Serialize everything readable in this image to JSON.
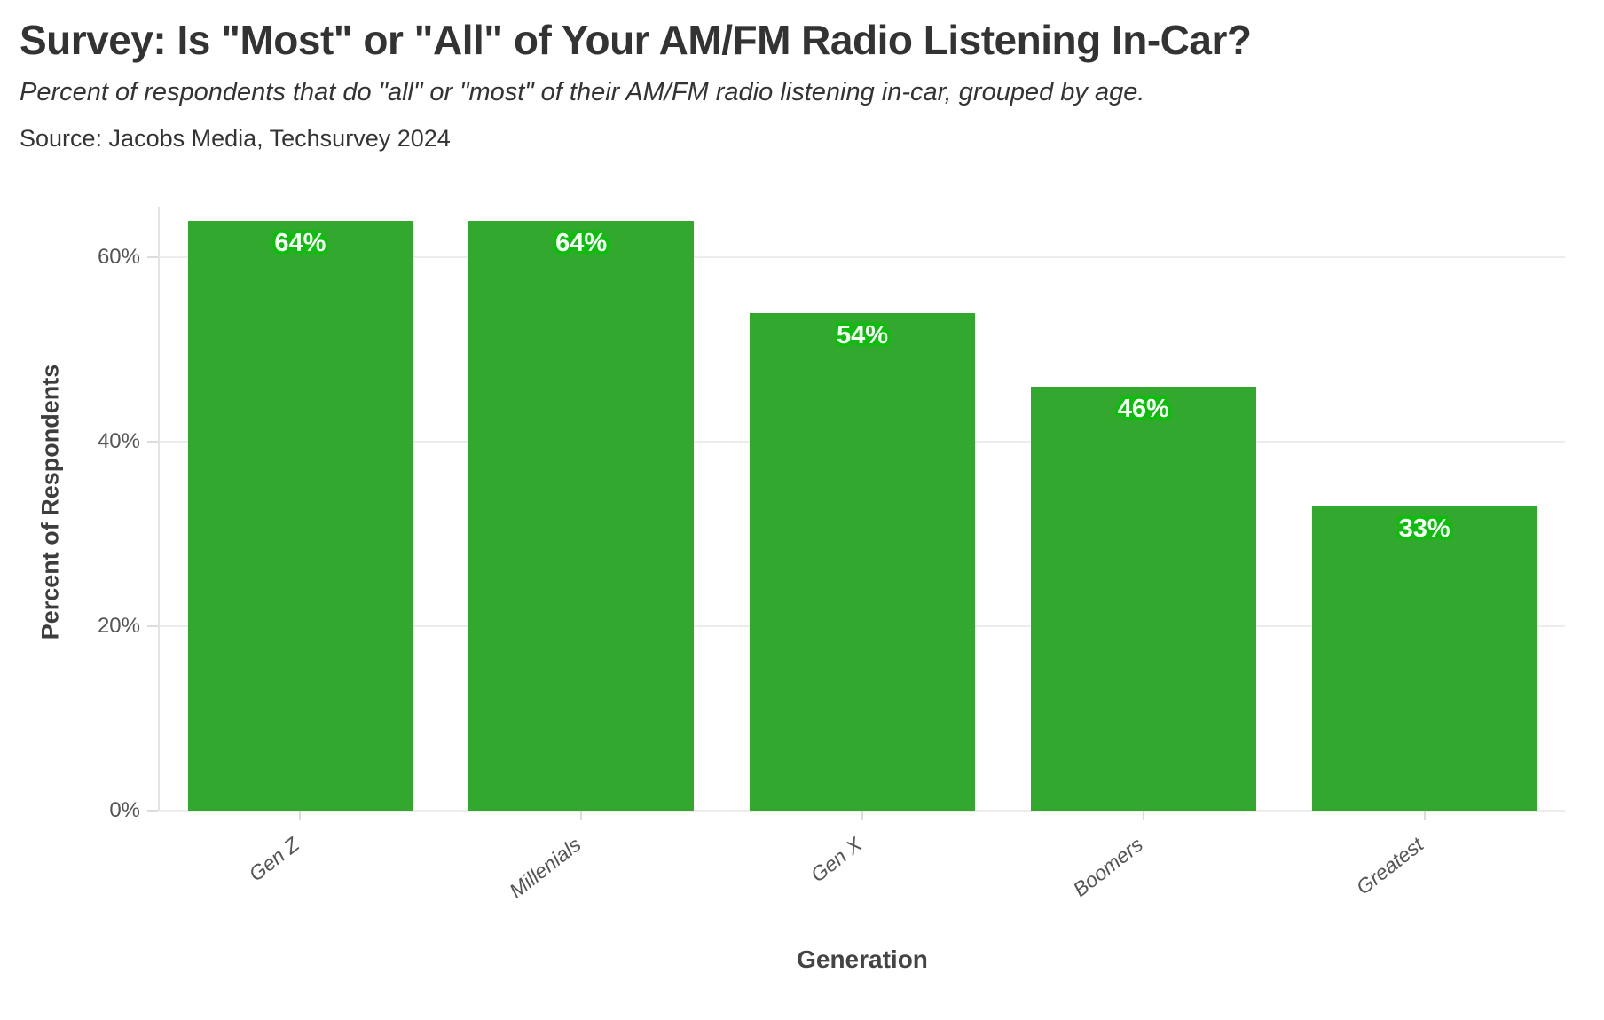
{
  "chart_data": {
    "type": "bar",
    "title": "Survey: Is \"Most\" or \"All\" of Your AM/FM Radio Listening In-Car?",
    "subtitle": "Percent of respondents that do \"all\" or \"most\" of their AM/FM radio listening in-car, grouped by age.",
    "source": "Source: Jacobs Media, Techsurvey 2024",
    "categories": [
      "Gen Z",
      "Millenials",
      "Gen X",
      "Boomers",
      "Greatest"
    ],
    "values": [
      64,
      64,
      54,
      46,
      33
    ],
    "value_labels": [
      "64%",
      "64%",
      "54%",
      "46%",
      "33%"
    ],
    "xlabel": "Generation",
    "ylabel": "Percent of Respondents",
    "yticks": [
      0,
      20,
      40,
      60
    ],
    "ytick_labels": [
      "0%",
      "20%",
      "40%",
      "60%"
    ],
    "ylim": [
      0,
      65.5
    ],
    "grid": "horizontal",
    "legend": "none",
    "bar_color": "#32a92e",
    "value_label_text_color": "#ffffff",
    "value_label_halo_color": "#0abf0a"
  }
}
